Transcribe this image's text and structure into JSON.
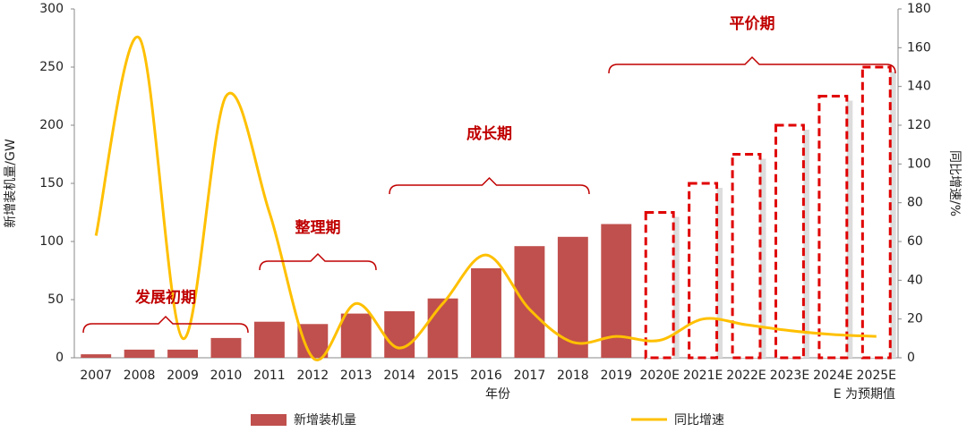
{
  "chart_data": {
    "type": "bar-line",
    "categories": [
      "2007",
      "2008",
      "2009",
      "2010",
      "2011",
      "2012",
      "2013",
      "2014",
      "2015",
      "2016",
      "2017",
      "2018",
      "2019",
      "2020E",
      "2021E",
      "2022E",
      "2023E",
      "2024E",
      "2025E"
    ],
    "series": [
      {
        "name": "新增装机量",
        "type": "bar",
        "color": "#c0504d",
        "values": [
          3,
          7,
          7,
          17,
          31,
          29,
          38,
          40,
          51,
          77,
          96,
          104,
          115,
          125,
          150,
          175,
          200,
          225,
          250
        ]
      },
      {
        "name": "同比增速",
        "type": "line",
        "axis": "y2",
        "color": "#ffc000",
        "values": [
          63,
          165,
          10,
          135,
          75,
          0,
          28,
          5,
          28,
          53,
          25,
          8,
          11,
          9,
          20,
          17,
          14,
          12,
          11
        ]
      }
    ],
    "forecast_from": "2020E",
    "ylim": [
      0,
      300
    ],
    "yticks": [
      0,
      50,
      100,
      150,
      200,
      250,
      300
    ],
    "y2lim": [
      0,
      180
    ],
    "y2ticks": [
      0,
      20,
      40,
      60,
      80,
      100,
      120,
      140,
      160,
      180
    ],
    "xlabel": "年份",
    "ylabel": "新增装机量/GW",
    "y2label": "同比增速/%",
    "note": "E 为预期值",
    "annotations": [
      "发展初期",
      "整理期",
      "成长期",
      "平价期"
    ]
  }
}
